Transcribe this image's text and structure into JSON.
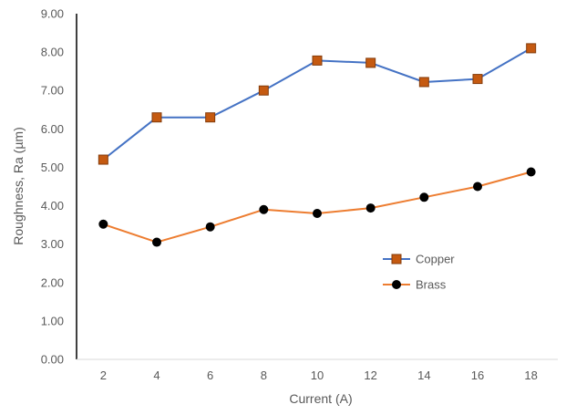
{
  "chart_data": {
    "type": "line",
    "title": "",
    "xlabel": "Current (A)",
    "ylabel": "Roughness, Ra (µm)",
    "categories": [
      "2",
      "4",
      "6",
      "8",
      "10",
      "12",
      "14",
      "16",
      "18"
    ],
    "ylim": [
      0,
      9
    ],
    "ytick_step": 1,
    "ytick_labels": [
      "0.00",
      "1.00",
      "2.00",
      "3.00",
      "4.00",
      "5.00",
      "6.00",
      "7.00",
      "8.00",
      "9.00"
    ],
    "grid": false,
    "legend_position": "right-middle",
    "series": [
      {
        "name": "Copper",
        "values": [
          5.2,
          6.3,
          6.3,
          7.0,
          7.78,
          7.72,
          7.22,
          7.3,
          8.1
        ],
        "line_color": "#4472c4",
        "marker": "square",
        "marker_fill": "#c55a11",
        "marker_edge": "#843c0c"
      },
      {
        "name": "Brass",
        "values": [
          3.52,
          3.05,
          3.45,
          3.9,
          3.8,
          3.94,
          4.22,
          4.5,
          4.88
        ],
        "line_color": "#ed7d31",
        "marker": "circle",
        "marker_fill": "#000000",
        "marker_edge": "#000000"
      }
    ]
  }
}
